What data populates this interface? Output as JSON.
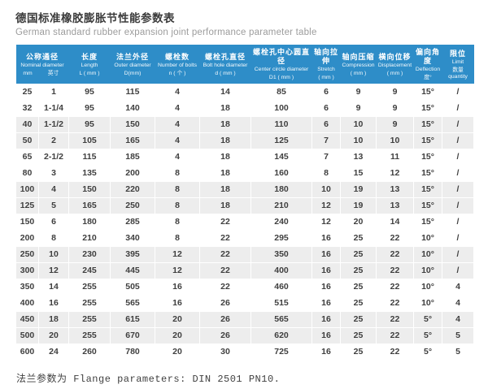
{
  "title": {
    "zh": "德国标准橡胶膨胀节性能参数表",
    "en": "German standard rubber expansion joint performance parameter table"
  },
  "footnote": "法兰参数为 Flange parameters: DIN 2501 PN10.",
  "colors": {
    "header_bg": "#2e8dc8",
    "row_shade": "#ededed",
    "header_text": "#ffffff",
    "body_text": "#3f3f3f"
  },
  "table": {
    "columns": [
      {
        "zh": "公称通径",
        "en": "Nominal diameter",
        "sub_left": "mm",
        "sub_right": "英寸",
        "span": 2
      },
      {
        "zh": "长度",
        "en": "Length",
        "sub": "L ( mm )"
      },
      {
        "zh": "法兰外径",
        "en": "Outer diameter",
        "sub": "D(mm)"
      },
      {
        "zh": "螺栓数",
        "en": "Number of bolts",
        "sub": "n ( 个 )"
      },
      {
        "zh": "螺栓孔直径",
        "en": "Bolt hole diameter",
        "sub": "d ( mm )"
      },
      {
        "zh": "螺栓孔中心圆直径",
        "en": "Center circle diameter",
        "sub": "D1 ( mm )"
      },
      {
        "zh": "轴向拉伸",
        "en": "Stretch",
        "sub": "( mm )"
      },
      {
        "zh": "轴向压缩",
        "en": "Compression",
        "sub": "( mm )"
      },
      {
        "zh": "横向位移",
        "en": "Displacement",
        "sub": "( mm )"
      },
      {
        "zh": "偏向角度",
        "en": "Deflection",
        "sub": "度°"
      },
      {
        "zh": "限位",
        "en": "Limit",
        "sub": "数量 quantity"
      }
    ],
    "rows": [
      [
        "25",
        "1",
        "95",
        "115",
        "4",
        "14",
        "85",
        "6",
        "9",
        "9",
        "15°",
        "/"
      ],
      [
        "32",
        "1-1/4",
        "95",
        "140",
        "4",
        "18",
        "100",
        "6",
        "9",
        "9",
        "15°",
        "/"
      ],
      [
        "40",
        "1-1/2",
        "95",
        "150",
        "4",
        "18",
        "110",
        "6",
        "10",
        "9",
        "15°",
        "/"
      ],
      [
        "50",
        "2",
        "105",
        "165",
        "4",
        "18",
        "125",
        "7",
        "10",
        "10",
        "15°",
        "/"
      ],
      [
        "65",
        "2-1/2",
        "115",
        "185",
        "4",
        "18",
        "145",
        "7",
        "13",
        "11",
        "15°",
        "/"
      ],
      [
        "80",
        "3",
        "135",
        "200",
        "8",
        "18",
        "160",
        "8",
        "15",
        "12",
        "15°",
        "/"
      ],
      [
        "100",
        "4",
        "150",
        "220",
        "8",
        "18",
        "180",
        "10",
        "19",
        "13",
        "15°",
        "/"
      ],
      [
        "125",
        "5",
        "165",
        "250",
        "8",
        "18",
        "210",
        "12",
        "19",
        "13",
        "15°",
        "/"
      ],
      [
        "150",
        "6",
        "180",
        "285",
        "8",
        "22",
        "240",
        "12",
        "20",
        "14",
        "15°",
        "/"
      ],
      [
        "200",
        "8",
        "210",
        "340",
        "8",
        "22",
        "295",
        "16",
        "25",
        "22",
        "10°",
        "/"
      ],
      [
        "250",
        "10",
        "230",
        "395",
        "12",
        "22",
        "350",
        "16",
        "25",
        "22",
        "10°",
        "/"
      ],
      [
        "300",
        "12",
        "245",
        "445",
        "12",
        "22",
        "400",
        "16",
        "25",
        "22",
        "10°",
        "/"
      ],
      [
        "350",
        "14",
        "255",
        "505",
        "16",
        "22",
        "460",
        "16",
        "25",
        "22",
        "10°",
        "4"
      ],
      [
        "400",
        "16",
        "255",
        "565",
        "16",
        "26",
        "515",
        "16",
        "25",
        "22",
        "10°",
        "4"
      ],
      [
        "450",
        "18",
        "255",
        "615",
        "20",
        "26",
        "565",
        "16",
        "25",
        "22",
        "5°",
        "4"
      ],
      [
        "500",
        "20",
        "255",
        "670",
        "20",
        "26",
        "620",
        "16",
        "25",
        "22",
        "5°",
        "5"
      ],
      [
        "600",
        "24",
        "260",
        "780",
        "20",
        "30",
        "725",
        "16",
        "25",
        "22",
        "5°",
        "5"
      ]
    ],
    "shaded_rows": [
      2,
      3,
      6,
      7,
      10,
      11,
      14,
      15
    ]
  }
}
